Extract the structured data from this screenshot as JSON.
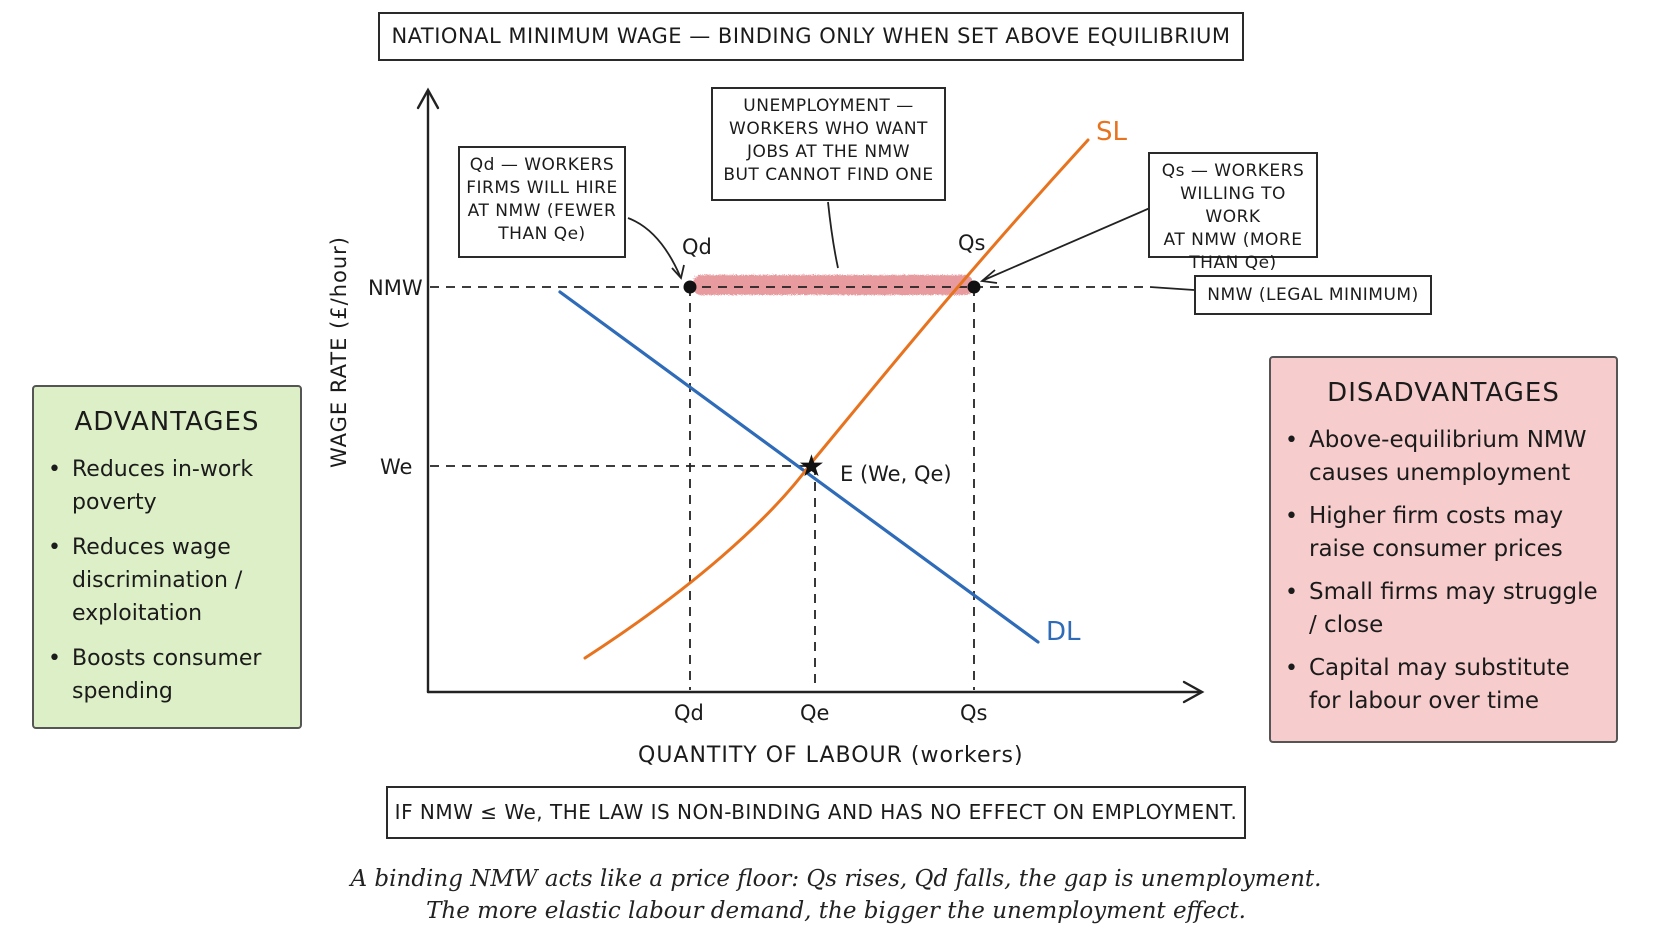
{
  "title": "NATIONAL MINIMUM WAGE — BINDING ONLY WHEN SET ABOVE EQUILIBRIUM",
  "diagram": {
    "y_axis_label": "WAGE RATE (£/hour)",
    "x_axis_label": "QUANTITY OF LABOUR (workers)",
    "y_ticks": [
      "NMW",
      "We"
    ],
    "x_ticks": [
      "Qd",
      "Qe",
      "Qs"
    ],
    "curves": [
      {
        "name": "SL",
        "color": "#e8731f"
      },
      {
        "name": "DL",
        "color": "#2e6bb8"
      }
    ],
    "point_labels": {
      "qd": "Qd",
      "qs": "Qs",
      "equilibrium": "E (We, Qe)"
    },
    "unemployment_band_color": "#e07a80",
    "callouts": {
      "qd": [
        "Qd — WORKERS",
        "FIRMS WILL HIRE",
        "AT NMW (FEWER",
        "THAN Qe)"
      ],
      "unemployment": [
        "UNEMPLOYMENT —",
        "WORKERS WHO WANT",
        "JOBS AT THE NMW",
        "BUT CANNOT FIND ONE"
      ],
      "qs": [
        "Qs — WORKERS",
        "WILLING TO WORK",
        "AT NMW (MORE",
        "THAN Qe)"
      ],
      "nmw": "NMW (LEGAL MINIMUM)"
    }
  },
  "advantages": {
    "heading": "ADVANTAGES",
    "color": "#dcefc6",
    "items": [
      "Reduces in-work poverty",
      "Reduces wage discrimination / exploitation",
      "Boosts consumer spending"
    ]
  },
  "disadvantages": {
    "heading": "DISADVANTAGES",
    "color": "#f6cccc",
    "items": [
      "Above-equilibrium NMW causes unemployment",
      "Higher firm costs may raise consumer prices",
      "Small firms may struggle / close",
      "Capital may substitute for labour over time"
    ]
  },
  "non_binding_note": "IF NMW ≤ We, THE LAW IS NON-BINDING AND HAS NO EFFECT ON EMPLOYMENT.",
  "summary": [
    "A binding NMW acts like a price floor: Qs rises, Qd falls, the gap is unemployment.",
    "The more elastic labour demand, the bigger the unemployment effect."
  ]
}
